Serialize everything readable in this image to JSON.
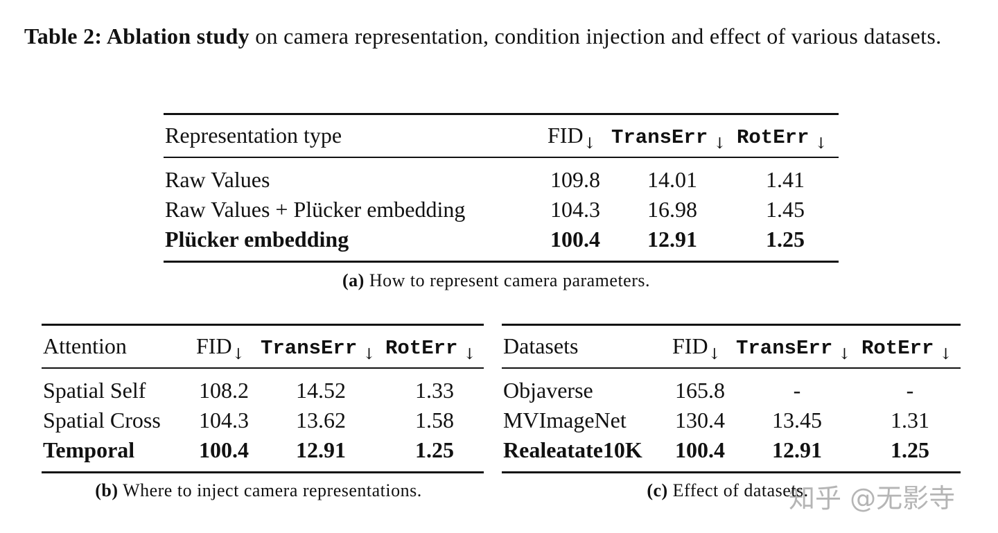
{
  "caption": {
    "label": "Table 2: Ablation study",
    "text": "on camera representation, condition injection and effect of various datasets."
  },
  "tables": [
    {
      "header": [
        {
          "text": "Representation type"
        },
        {
          "text": "FID",
          "arrow": "↓"
        },
        {
          "text": "TransErr",
          "arrow": "↓"
        },
        {
          "text": "RotErr",
          "arrow": "↓"
        }
      ],
      "rows": [
        {
          "cells": [
            "Raw Values",
            "109.8",
            "14.01",
            "1.41"
          ]
        },
        {
          "cells": [
            "Raw Values + Plücker embedding",
            "104.3",
            "16.98",
            "1.45"
          ]
        },
        {
          "cells": [
            "Plücker embedding",
            "100.4",
            "12.91",
            "1.25"
          ],
          "bold": true
        }
      ],
      "caption": {
        "label": "(a)",
        "text": "How to represent camera parameters."
      }
    },
    {
      "header": [
        {
          "text": "Attention"
        },
        {
          "text": "FID",
          "arrow": "↓"
        },
        {
          "text": "TransErr",
          "arrow": "↓"
        },
        {
          "text": "RotErr",
          "arrow": "↓"
        }
      ],
      "rows": [
        {
          "cells": [
            "Spatial Self",
            "108.2",
            "14.52",
            "1.33"
          ]
        },
        {
          "cells": [
            "Spatial Cross",
            "104.3",
            "13.62",
            "1.58"
          ]
        },
        {
          "cells": [
            "Temporal",
            "100.4",
            "12.91",
            "1.25"
          ],
          "bold": true
        }
      ],
      "caption": {
        "label": "(b)",
        "text": "Where to inject camera representations."
      }
    },
    {
      "header": [
        {
          "text": "Datasets"
        },
        {
          "text": "FID",
          "arrow": "↓"
        },
        {
          "text": "TransErr",
          "arrow": "↓"
        },
        {
          "text": "RotErr",
          "arrow": "↓"
        }
      ],
      "rows": [
        {
          "cells": [
            "Objaverse",
            "165.8",
            "-",
            "-"
          ]
        },
        {
          "cells": [
            "MVImageNet",
            "130.4",
            "13.45",
            "1.31"
          ]
        },
        {
          "cells": [
            "Realeatate10K",
            "100.4",
            "12.91",
            "1.25"
          ],
          "bold": true
        }
      ],
      "caption": {
        "label": "(c)",
        "text": "Effect of datasets."
      }
    }
  ],
  "watermark": "知乎 @无影寺"
}
